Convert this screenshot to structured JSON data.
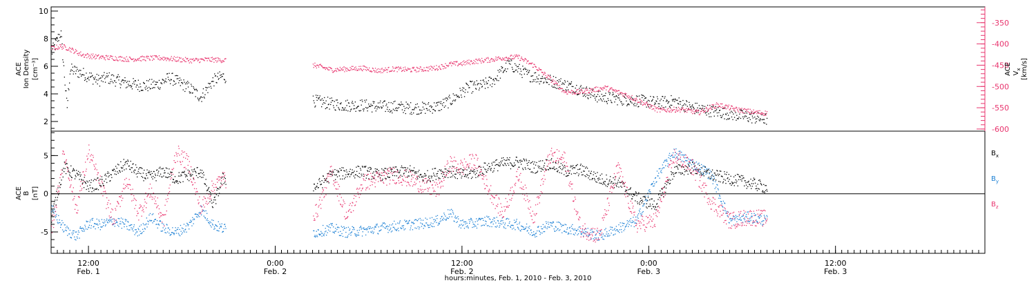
{
  "chart_data": [
    {
      "type": "scatter",
      "panel": "top",
      "left_axis": {
        "label_lines": [
          "ACE",
          "Ion Density",
          "[cm⁻³]"
        ],
        "ylim": [
          1.3,
          10.3
        ],
        "ticks": [
          2,
          4,
          6,
          8,
          10
        ],
        "tick_labels": [
          "2",
          "4",
          "6",
          "8",
          "10"
        ]
      },
      "right_axis": {
        "label_lines": [
          "ACE",
          "V",
          "[km/s]"
        ],
        "ylim": [
          -605,
          -313
        ],
        "ticks": [
          -350,
          -400,
          -450,
          -500,
          -550,
          -600
        ],
        "tick_labels": [
          "-350",
          "-400",
          "-450",
          "-500",
          "-550",
          "-600"
        ],
        "color": "#e8336d"
      },
      "series": [
        {
          "color": "#000000",
          "axis": "left",
          "x": [
            0,
            3,
            5,
            6,
            10,
            15,
            18,
            24,
            30,
            34,
            38,
            44,
            48,
            52,
            55,
            85,
            90,
            95,
            100,
            105,
            110,
            115,
            120,
            124,
            128,
            131,
            134,
            138,
            142,
            147,
            153,
            160,
            168,
            176,
            185,
            195,
            200,
            206,
            212,
            220,
            226,
            230
          ],
          "y": [
            7.0,
            8.5,
            3.0,
            5.8,
            5.5,
            5.0,
            5.2,
            4.8,
            4.6,
            4.7,
            5.2,
            4.5,
            3.8,
            5.0,
            5.3,
            3.5,
            3.3,
            3.2,
            3.2,
            3.1,
            3.1,
            3.0,
            3.0,
            3.1,
            3.5,
            4.0,
            4.5,
            4.6,
            5.0,
            6.2,
            5.4,
            5.0,
            4.5,
            3.8,
            3.6,
            3.4,
            3.5,
            3.0,
            2.8,
            2.5,
            2.3,
            2.2
          ]
        },
        {
          "color": "#e8336d",
          "axis": "right",
          "x": [
            0,
            3,
            5,
            10,
            15,
            20,
            25,
            30,
            35,
            40,
            45,
            50,
            55,
            85,
            90,
            95,
            100,
            105,
            110,
            115,
            120,
            124,
            128,
            132,
            136,
            140,
            145,
            150,
            155,
            160,
            165,
            170,
            178,
            185,
            195,
            202,
            208,
            214,
            220,
            226,
            230
          ],
          "y": [
            -410,
            -405,
            -408,
            -425,
            -430,
            -432,
            -435,
            -433,
            -432,
            -435,
            -438,
            -436,
            -437,
            -450,
            -460,
            -458,
            -456,
            -462,
            -458,
            -460,
            -458,
            -455,
            -447,
            -445,
            -440,
            -437,
            -432,
            -430,
            -450,
            -480,
            -512,
            -512,
            -502,
            -520,
            -555,
            -553,
            -560,
            -542,
            -553,
            -560,
            -562
          ]
        }
      ]
    },
    {
      "type": "scatter",
      "panel": "bottom",
      "left_axis": {
        "label_lines": [
          "ACE",
          "B",
          "[nT]"
        ],
        "ylim": [
          -7.8,
          8.2
        ],
        "ticks": [
          -5,
          0,
          5
        ],
        "tick_labels": [
          "-5",
          "0",
          "5"
        ]
      },
      "zero_line": true,
      "legend": [
        {
          "base": "B",
          "sub": "x",
          "color": "#000000"
        },
        {
          "base": "B",
          "sub": "y",
          "color": "#1a7fd4"
        },
        {
          "base": "B",
          "sub": "z",
          "color": "#e8336d"
        }
      ],
      "series": [
        {
          "color": "#000000",
          "x": [
            0,
            4,
            8,
            12,
            16,
            20,
            24,
            28,
            32,
            36,
            40,
            44,
            48,
            52,
            55,
            85,
            90,
            95,
            100,
            105,
            110,
            115,
            120,
            124,
            128,
            132,
            136,
            140,
            145,
            150,
            155,
            160,
            165,
            170,
            176,
            182,
            188,
            194,
            200,
            206,
            212,
            218,
            224,
            230
          ],
          "y": [
            -3.0,
            3.5,
            2.5,
            1.0,
            1.5,
            2.8,
            4.0,
            2.8,
            2.2,
            3.0,
            2.0,
            2.5,
            3.0,
            -1.5,
            2.0,
            1.0,
            2.5,
            2.8,
            3.0,
            2.5,
            2.8,
            3.0,
            2.2,
            2.8,
            3.0,
            2.5,
            2.8,
            3.5,
            4.0,
            4.2,
            3.5,
            4.0,
            3.0,
            3.2,
            2.0,
            1.5,
            -0.5,
            -1.5,
            3.0,
            3.5,
            2.5,
            2.0,
            1.5,
            0.8
          ]
        },
        {
          "color": "#1a7fd4",
          "x": [
            0,
            4,
            8,
            12,
            16,
            20,
            24,
            28,
            32,
            36,
            40,
            44,
            48,
            52,
            55,
            85,
            90,
            95,
            100,
            105,
            110,
            115,
            120,
            124,
            128,
            132,
            136,
            140,
            145,
            150,
            155,
            160,
            165,
            170,
            176,
            182,
            188,
            194,
            200,
            206,
            212,
            218,
            224,
            230
          ],
          "y": [
            -2.0,
            -4.5,
            -5.5,
            -3.8,
            -4.0,
            -3.5,
            -4.0,
            -5.0,
            -3.0,
            -4.5,
            -5.0,
            -4.2,
            -2.0,
            -4.0,
            -4.5,
            -5.0,
            -4.5,
            -5.0,
            -4.8,
            -4.5,
            -4.2,
            -4.0,
            -3.8,
            -3.5,
            -2.5,
            -4.0,
            -3.8,
            -3.5,
            -3.8,
            -4.0,
            -5.0,
            -4.0,
            -4.5,
            -4.8,
            -5.5,
            -4.5,
            -3.5,
            2.0,
            5.5,
            4.0,
            2.5,
            -3.5,
            -3.0,
            -3.5
          ]
        },
        {
          "color": "#e8336d",
          "x": [
            0,
            4,
            8,
            12,
            16,
            20,
            24,
            28,
            32,
            36,
            40,
            44,
            48,
            52,
            55,
            85,
            90,
            95,
            100,
            105,
            110,
            115,
            120,
            124,
            128,
            132,
            136,
            140,
            145,
            150,
            155,
            160,
            165,
            170,
            176,
            182,
            188,
            194,
            200,
            206,
            212,
            218,
            224,
            230
          ],
          "y": [
            -5.0,
            5.5,
            -2.0,
            5.5,
            1.0,
            -3.5,
            2.0,
            -2.5,
            0.5,
            -3.5,
            5.5,
            4.0,
            -2.0,
            1.0,
            2.0,
            -2.5,
            3.0,
            -3.0,
            1.5,
            2.0,
            2.5,
            2.0,
            1.0,
            0.5,
            4.0,
            3.5,
            4.5,
            1.0,
            -2.5,
            2.5,
            -3.0,
            5.0,
            4.5,
            -4.5,
            -5.5,
            3.5,
            -4.0,
            -3.5,
            5.0,
            3.5,
            -1.0,
            -3.5,
            -3.0,
            -3.2
          ]
        }
      ]
    }
  ],
  "time_axis": {
    "xlim": [
      0,
      300
    ],
    "major_ticks": [
      {
        "x": 12,
        "time": "12:00",
        "date": "Feb. 1"
      },
      {
        "x": 72,
        "time": "0:00",
        "date": "Feb. 2"
      },
      {
        "x": 132,
        "time": "12:00",
        "date": "Feb. 2"
      },
      {
        "x": 192,
        "time": "0:00",
        "date": "Feb. 3"
      },
      {
        "x": 252,
        "time": "12:00",
        "date": "Feb. 3"
      }
    ],
    "minor_step": 2,
    "label": "hours:minutes, Feb.  1, 2010 - Feb.  3, 2010"
  }
}
